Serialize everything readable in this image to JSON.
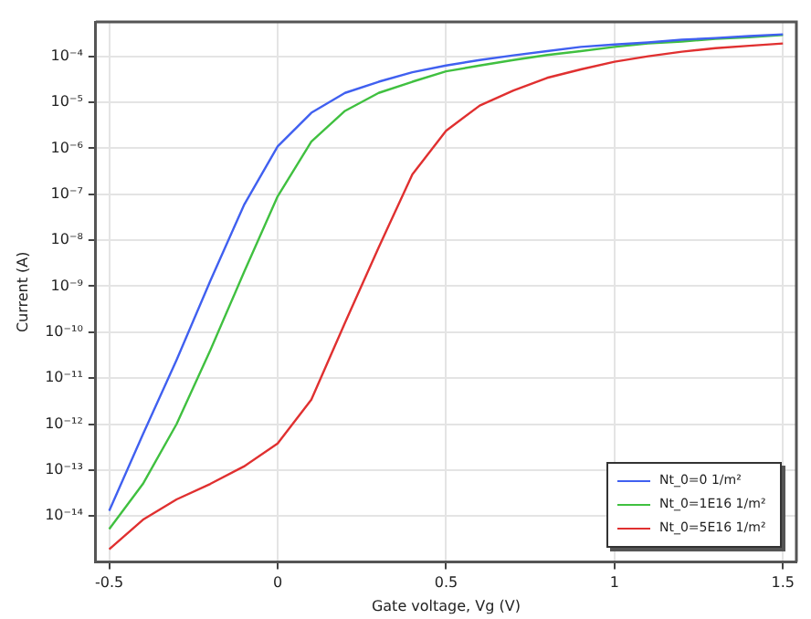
{
  "chart_data": {
    "type": "line",
    "xlabel": "Gate voltage, Vg (V)",
    "ylabel": "Current (A)",
    "log": "y",
    "grid": true,
    "legend": "bottom right",
    "marker": "none",
    "line_style": "solid",
    "x": [
      -0.5,
      -0.4,
      -0.3,
      -0.2,
      -0.1,
      0,
      0.1,
      0.2,
      0.3,
      0.4,
      0.5,
      0.6,
      0.7,
      0.8,
      0.9,
      1.0,
      1.1,
      1.2,
      1.3,
      1.4,
      1.5
    ],
    "xlim": [
      -0.54,
      1.54
    ],
    "xticks": [
      -0.5,
      0,
      0.5,
      1,
      1.5
    ],
    "ylim": [
      1e-15,
      0.00056
    ],
    "yticks": [
      {
        "value": 1e-14,
        "label": "10⁻¹⁴"
      },
      {
        "value": 1e-13,
        "label": "10⁻¹³"
      },
      {
        "value": 1e-12,
        "label": "10⁻¹²"
      },
      {
        "value": 1e-11,
        "label": "10⁻¹¹"
      },
      {
        "value": 1e-10,
        "label": "10⁻¹⁰"
      },
      {
        "value": 1e-09,
        "label": "10⁻⁹"
      },
      {
        "value": 1e-08,
        "label": "10⁻⁸"
      },
      {
        "value": 1e-07,
        "label": "10⁻⁷"
      },
      {
        "value": 1e-06,
        "label": "10⁻⁶"
      },
      {
        "value": 1e-05,
        "label": "10⁻⁵"
      },
      {
        "value": 0.0001,
        "label": "10⁻⁴"
      }
    ],
    "series": [
      {
        "name": "Nt_0=0 1/m²",
        "color": "#4060f0",
        "values": [
          1.3e-14,
          6e-13,
          2.5e-11,
          1.3e-09,
          5.8e-08,
          1.1e-06,
          5.9e-06,
          1.6e-05,
          2.8e-05,
          4.5e-05,
          6.3e-05,
          8.3e-05,
          0.000105,
          0.00013,
          0.00016,
          0.00018,
          0.0002,
          0.00023,
          0.00025,
          0.000275,
          0.0003
        ]
      },
      {
        "name": "Nt_0=1E16 1/m²",
        "color": "#40c040",
        "values": [
          5.2e-15,
          5e-14,
          1e-12,
          4e-11,
          2e-09,
          9e-08,
          1.4e-06,
          6.5e-06,
          1.6e-05,
          2.8e-05,
          4.7e-05,
          6.3e-05,
          8.3e-05,
          0.000107,
          0.00013,
          0.00016,
          0.00019,
          0.00021,
          0.00024,
          0.00026,
          0.00029
        ]
      },
      {
        "name": "Nt_0=5E16 1/m²",
        "color": "#e03030",
        "values": [
          1.9e-15,
          8.3e-15,
          2.3e-14,
          5e-14,
          1.2e-13,
          3.8e-13,
          3.4e-12,
          1.6e-10,
          7e-09,
          2.7e-07,
          2.4e-06,
          8.5e-06,
          1.8e-05,
          3.4e-05,
          5.2e-05,
          7.6e-05,
          0.0001,
          0.000126,
          0.00015,
          0.00017,
          0.00019
        ]
      }
    ]
  }
}
